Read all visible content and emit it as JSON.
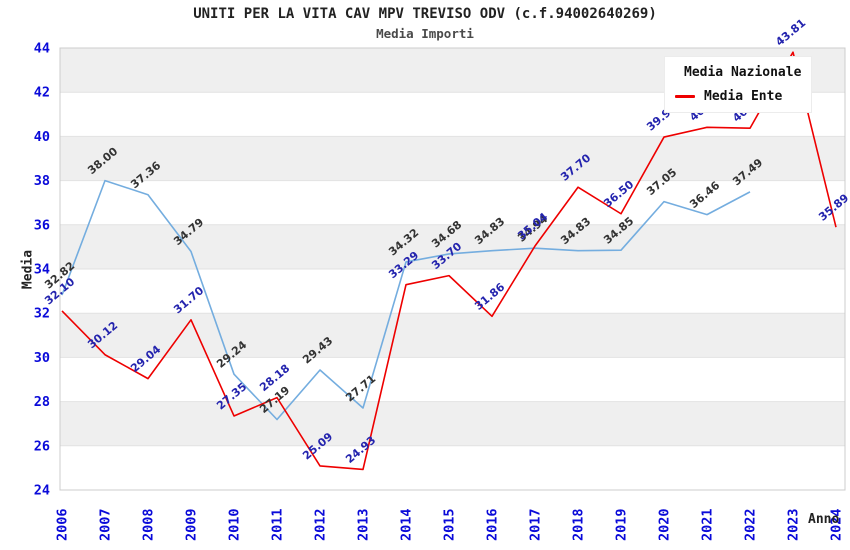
{
  "header": {
    "title": "UNITI PER LA VITA CAV MPV TREVISO ODV (c.f.94002640269)",
    "subtitle": "Media Importi"
  },
  "chart_data": {
    "type": "line",
    "title": "UNITI PER LA VITA CAV MPV TREVISO ODV (c.f.94002640269)",
    "subtitle": "Media Importi",
    "xlabel": "Anno",
    "ylabel": "Media",
    "ylim": [
      24,
      44
    ],
    "ytick_step": 2,
    "grid": "horizontal-bands-on",
    "legend_position": "top-right",
    "x": [
      2006,
      2007,
      2008,
      2009,
      2010,
      2011,
      2012,
      2013,
      2014,
      2015,
      2016,
      2017,
      2018,
      2019,
      2020,
      2021,
      2022,
      2023,
      2024
    ],
    "series": [
      {
        "name": "Media Nazionale",
        "color": "#74addf",
        "label_color": "#333333",
        "values": [
          32.82,
          38.0,
          37.36,
          34.79,
          29.24,
          27.19,
          29.43,
          27.71,
          34.32,
          34.68,
          34.83,
          34.94,
          34.83,
          34.85,
          37.05,
          36.46,
          37.49,
          null,
          null
        ]
      },
      {
        "name": "Media Ente",
        "color": "#ee0000",
        "label_color": "#2424ae",
        "values": [
          32.1,
          30.12,
          29.04,
          31.7,
          27.35,
          28.18,
          25.09,
          24.93,
          33.29,
          33.7,
          31.86,
          35.04,
          37.7,
          36.5,
          39.97,
          40.41,
          40.37,
          43.81,
          35.89
        ]
      }
    ],
    "colors": {
      "axis_tick_label": "#0a0ad9",
      "band_fill": "#efefef",
      "gridline": "#e2e2e2",
      "plot_border": "#cccccc",
      "background": "#ffffff"
    }
  }
}
